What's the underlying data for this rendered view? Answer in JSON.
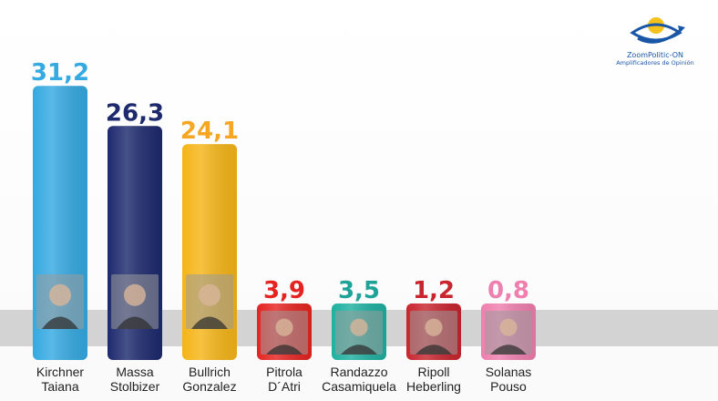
{
  "logo": {
    "brand": "ZoomPolitic-ON",
    "tagline": "Amplificadores de Opinión",
    "colors": {
      "blue": "#1a56a6",
      "yellow": "#f4c21a"
    }
  },
  "band_color": "#d3d3d3",
  "chart_data": {
    "type": "bar",
    "title": "",
    "xlabel": "",
    "ylabel": "",
    "ylim": [
      0,
      32
    ],
    "categories": [
      [
        "Kirchner",
        "Taiana"
      ],
      [
        "Massa",
        "Stolbizer"
      ],
      [
        "Bullrich",
        "Gonzalez"
      ],
      [
        "Pitrola",
        "D´Atri"
      ],
      [
        "Randazzo",
        "Casamiquela"
      ],
      [
        "Ripoll",
        "Heberling"
      ],
      [
        "Solanas",
        "Pouso"
      ]
    ],
    "values": [
      31.2,
      26.3,
      24.1,
      3.9,
      3.5,
      1.2,
      0.8
    ],
    "value_labels": [
      "31,2",
      "26,3",
      "24,1",
      "3,9",
      "3,5",
      "1,2",
      "0,8"
    ],
    "colors": [
      "#35a9e1",
      "#1d2a6e",
      "#f5b518",
      "#e52421",
      "#1fb0a0",
      "#c8252e",
      "#ef7fae"
    ],
    "label_colors": [
      "#35a9e1",
      "#1d2a6e",
      "#f5a623",
      "#e52421",
      "#1fa398",
      "#c8252e",
      "#ef7fae"
    ]
  }
}
